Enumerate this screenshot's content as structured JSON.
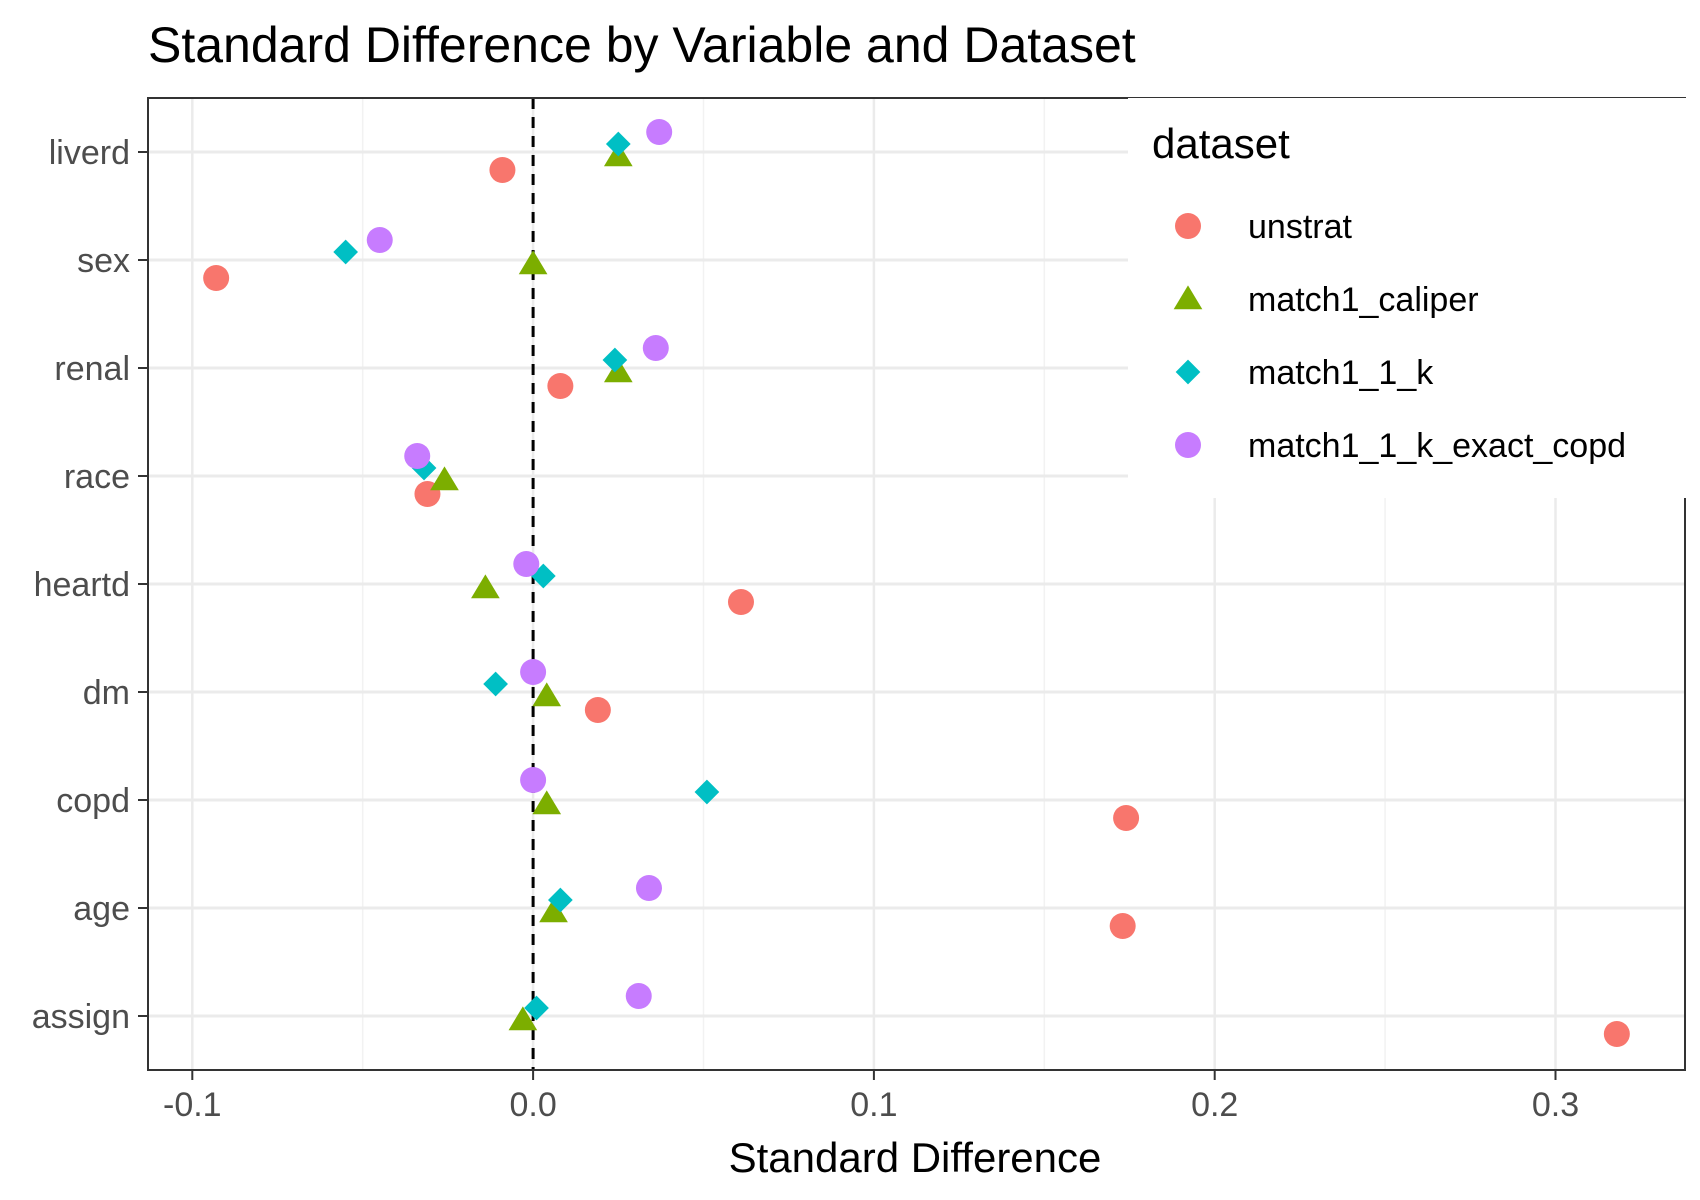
{
  "chart_data": {
    "type": "scatter",
    "title": "Standard Difference by Variable and Dataset",
    "xlabel": "Standard Difference",
    "ylabel": "",
    "xlim": [
      -0.113,
      0.338
    ],
    "x_ticks": [
      -0.1,
      0.0,
      0.1,
      0.2,
      0.3
    ],
    "x_tick_labels": [
      "-0.1",
      "0.0",
      "0.1",
      "0.2",
      "0.3"
    ],
    "reference_line": {
      "x": 0,
      "style": "dashed"
    },
    "grid": true,
    "categories": [
      "liverd",
      "sex",
      "renal",
      "race",
      "heartd",
      "dm",
      "copd",
      "age",
      "assign"
    ],
    "legend": {
      "title": "dataset",
      "placement": "top-right"
    },
    "series": [
      {
        "name": "unstrat",
        "color": "#F8766D",
        "shape": "circle",
        "values": [
          -0.009,
          -0.093,
          0.008,
          -0.031,
          0.061,
          0.019,
          0.174,
          0.173,
          0.318
        ]
      },
      {
        "name": "match1_caliper",
        "color": "#7CAE00",
        "shape": "triangle",
        "values": [
          0.025,
          0.0,
          0.025,
          -0.026,
          -0.014,
          0.004,
          0.004,
          0.006,
          -0.003
        ]
      },
      {
        "name": "match1_1_k",
        "color": "#00BFC4",
        "shape": "diamond",
        "values": [
          0.025,
          -0.055,
          0.024,
          -0.032,
          0.003,
          -0.011,
          0.051,
          0.008,
          0.001
        ]
      },
      {
        "name": "match1_1_k_exact_copd",
        "color": "#C77CFF",
        "shape": "circle",
        "values": [
          0.037,
          -0.045,
          0.036,
          -0.034,
          -0.002,
          0.0,
          0.0,
          0.034,
          0.031
        ]
      }
    ]
  }
}
